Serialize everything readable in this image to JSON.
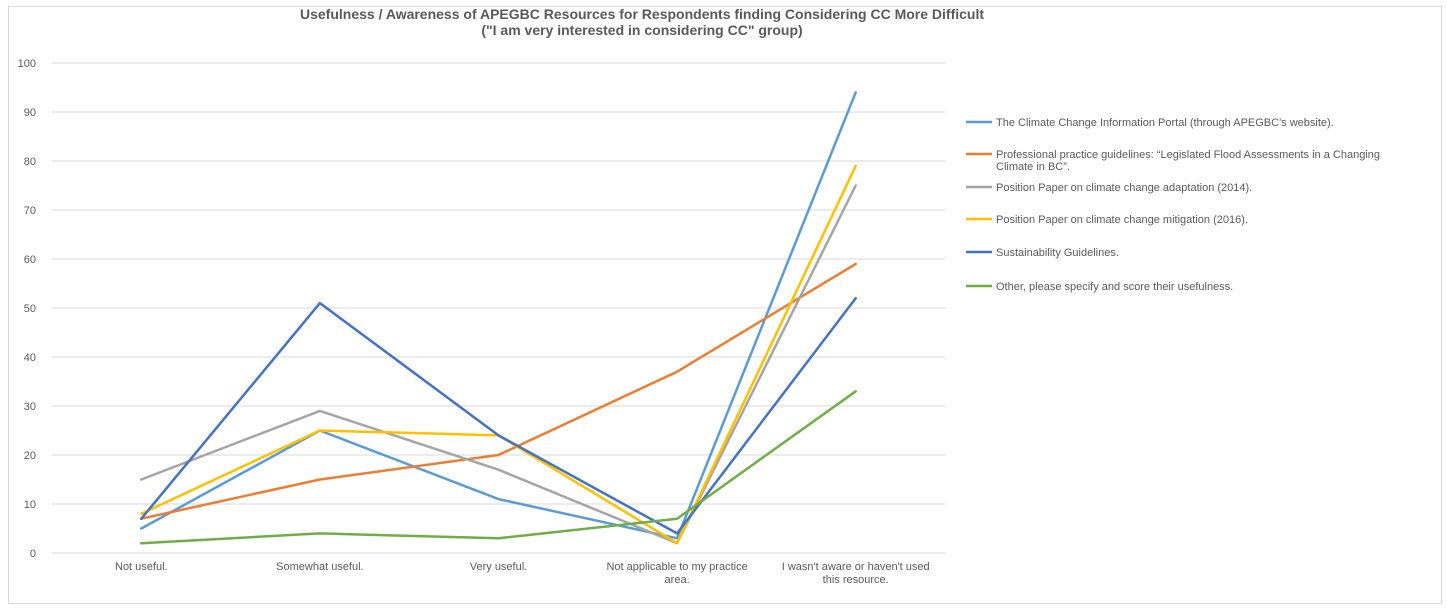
{
  "chart_data": {
    "type": "line",
    "title_lines": [
      "Usefulness / Awareness of APEGBC Resources for Respondents finding Considering CC More Difficult",
      "(\"I am very interested in considering CC\" group)"
    ],
    "categories": [
      [
        "Not useful."
      ],
      [
        "Somewhat useful."
      ],
      [
        "Very useful."
      ],
      [
        "Not applicable to my practice",
        "area."
      ],
      [
        "I wasn't aware or haven't used",
        "this resource."
      ]
    ],
    "ylim": [
      0,
      100
    ],
    "yticks": [
      0,
      10,
      20,
      30,
      40,
      50,
      60,
      70,
      80,
      90,
      100
    ],
    "grid": true,
    "legend_position": "right",
    "series": [
      {
        "name_lines": [
          "The Climate Change Information Portal (through APEGBC's website)."
        ],
        "color": "#5b9bd5",
        "values": [
          5,
          25,
          11,
          3,
          94
        ]
      },
      {
        "name_lines": [
          "Professional practice guidelines: “Legislated Flood Assessments in a Changing",
          "Climate in BC”."
        ],
        "color": "#ed7d31",
        "values": [
          7,
          15,
          20,
          37,
          59
        ]
      },
      {
        "name_lines": [
          "Position Paper on climate change adaptation (2014)."
        ],
        "color": "#a5a5a5",
        "values": [
          15,
          29,
          17,
          2,
          75
        ]
      },
      {
        "name_lines": [
          "Position Paper on climate change mitigation (2016)."
        ],
        "color": "#ffc000",
        "values": [
          8,
          25,
          24,
          2,
          79
        ]
      },
      {
        "name_lines": [
          "Sustainability Guidelines."
        ],
        "color": "#4472c4",
        "values": [
          7,
          51,
          24,
          4,
          52
        ]
      },
      {
        "name_lines": [
          "Other, please specify and score their usefulness."
        ],
        "color": "#70ad47",
        "values": [
          2,
          4,
          3,
          7,
          33
        ]
      }
    ]
  }
}
